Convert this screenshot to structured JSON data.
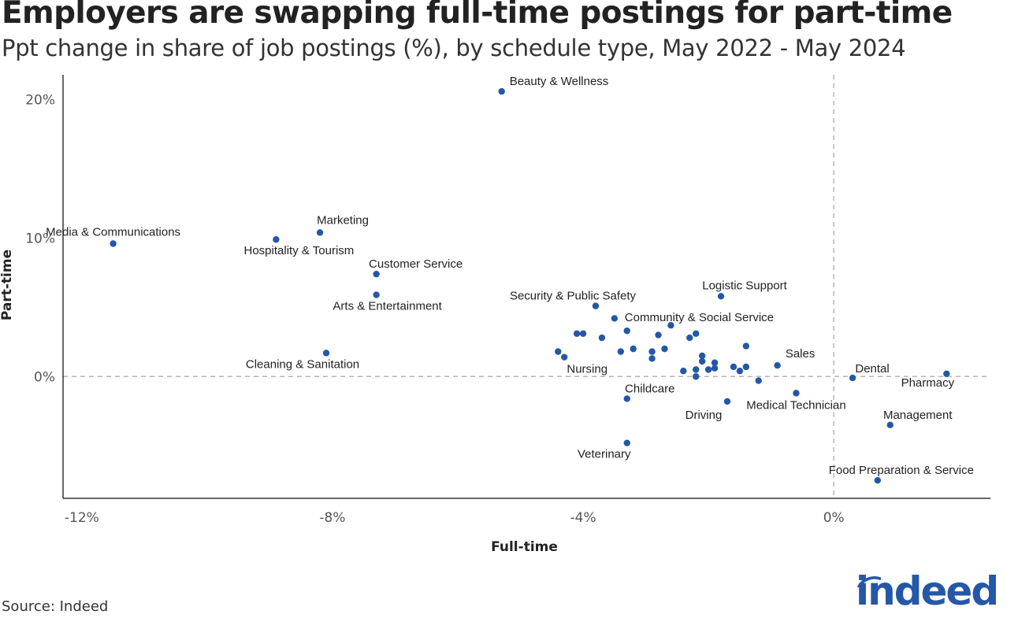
{
  "title": "Employers are swapping full-time postings for part-time",
  "subtitle": "Ppt change in share of job postings (%), by schedule type, May 2022 - May 2024",
  "source": "Source: Indeed",
  "logo_text": "indeed",
  "colors": {
    "point": "#2557a7",
    "axis": "#333333",
    "refline": "#b5b5b5",
    "text": "#222222",
    "tick": "#555555"
  },
  "chart_data": {
    "type": "scatter",
    "xlabel": "Full-time",
    "ylabel": "Part-time",
    "xlim": [
      -12.3,
      2.5
    ],
    "ylim": [
      -8.8,
      21.8
    ],
    "x_ticks": [
      {
        "value": -12,
        "label": "-12%"
      },
      {
        "value": -8,
        "label": "-8%"
      },
      {
        "value": -4,
        "label": "-4%"
      },
      {
        "value": 0,
        "label": "0%"
      }
    ],
    "y_ticks": [
      {
        "value": 0,
        "label": "0%"
      },
      {
        "value": 10,
        "label": "10%"
      },
      {
        "value": 20,
        "label": "20%"
      }
    ],
    "reference_lines": {
      "x": 0,
      "y": 0,
      "style": "dashed"
    },
    "points": [
      {
        "x": -5.3,
        "y": 20.6,
        "label": "Beauty & Wellness"
      },
      {
        "x": -11.5,
        "y": 9.6,
        "label": "Media & Communications"
      },
      {
        "x": -8.2,
        "y": 10.4,
        "label": "Marketing"
      },
      {
        "x": -8.9,
        "y": 9.9,
        "label": "Hospitality & Tourism"
      },
      {
        "x": -7.3,
        "y": 7.4,
        "label": "Customer Service"
      },
      {
        "x": -7.3,
        "y": 5.9,
        "label": "Arts & Entertainment"
      },
      {
        "x": -8.1,
        "y": 1.7,
        "label": "Cleaning & Sanitation"
      },
      {
        "x": -3.8,
        "y": 5.1,
        "label": "Security & Public Safety"
      },
      {
        "x": -1.8,
        "y": 5.8,
        "label": "Logistic Support"
      },
      {
        "x": -2.6,
        "y": 3.7,
        "label": "Community & Social Service"
      },
      {
        "x": -4.3,
        "y": 1.4,
        "label": "Nursing"
      },
      {
        "x": -0.9,
        "y": 0.8,
        "label": "Sales"
      },
      {
        "x": 0.3,
        "y": -0.1,
        "label": "Dental"
      },
      {
        "x": 1.8,
        "y": 0.2,
        "label": "Pharmacy"
      },
      {
        "x": -3.3,
        "y": -1.6,
        "label": "Childcare"
      },
      {
        "x": -1.7,
        "y": -1.8,
        "label": "Driving"
      },
      {
        "x": -0.6,
        "y": -1.2,
        "label": "Medical Technician"
      },
      {
        "x": 0.9,
        "y": -3.5,
        "label": "Management"
      },
      {
        "x": -3.3,
        "y": -4.8,
        "label": "Veterinary"
      },
      {
        "x": 0.7,
        "y": -7.5,
        "label": "Food Preparation & Service"
      },
      {
        "x": -3.5,
        "y": 4.2,
        "label": ""
      },
      {
        "x": -3.3,
        "y": 3.3,
        "label": ""
      },
      {
        "x": -4.0,
        "y": 3.1,
        "label": ""
      },
      {
        "x": -4.1,
        "y": 3.1,
        "label": ""
      },
      {
        "x": -3.7,
        "y": 2.8,
        "label": ""
      },
      {
        "x": -2.8,
        "y": 3.0,
        "label": ""
      },
      {
        "x": -2.3,
        "y": 2.8,
        "label": ""
      },
      {
        "x": -2.2,
        "y": 3.1,
        "label": ""
      },
      {
        "x": -1.4,
        "y": 2.2,
        "label": ""
      },
      {
        "x": -4.4,
        "y": 1.8,
        "label": ""
      },
      {
        "x": -3.4,
        "y": 1.8,
        "label": ""
      },
      {
        "x": -3.2,
        "y": 2.0,
        "label": ""
      },
      {
        "x": -2.9,
        "y": 1.8,
        "label": ""
      },
      {
        "x": -2.7,
        "y": 2.0,
        "label": ""
      },
      {
        "x": -2.9,
        "y": 1.3,
        "label": ""
      },
      {
        "x": -2.1,
        "y": 1.5,
        "label": ""
      },
      {
        "x": -2.1,
        "y": 1.1,
        "label": ""
      },
      {
        "x": -1.9,
        "y": 1.0,
        "label": ""
      },
      {
        "x": -1.9,
        "y": 0.6,
        "label": ""
      },
      {
        "x": -2.0,
        "y": 0.5,
        "label": ""
      },
      {
        "x": -2.2,
        "y": 0.5,
        "label": ""
      },
      {
        "x": -2.4,
        "y": 0.4,
        "label": ""
      },
      {
        "x": -1.6,
        "y": 0.7,
        "label": ""
      },
      {
        "x": -1.5,
        "y": 0.4,
        "label": ""
      },
      {
        "x": -1.4,
        "y": 0.7,
        "label": ""
      },
      {
        "x": -2.2,
        "y": 0.0,
        "label": ""
      },
      {
        "x": -1.2,
        "y": -0.3,
        "label": ""
      }
    ]
  }
}
